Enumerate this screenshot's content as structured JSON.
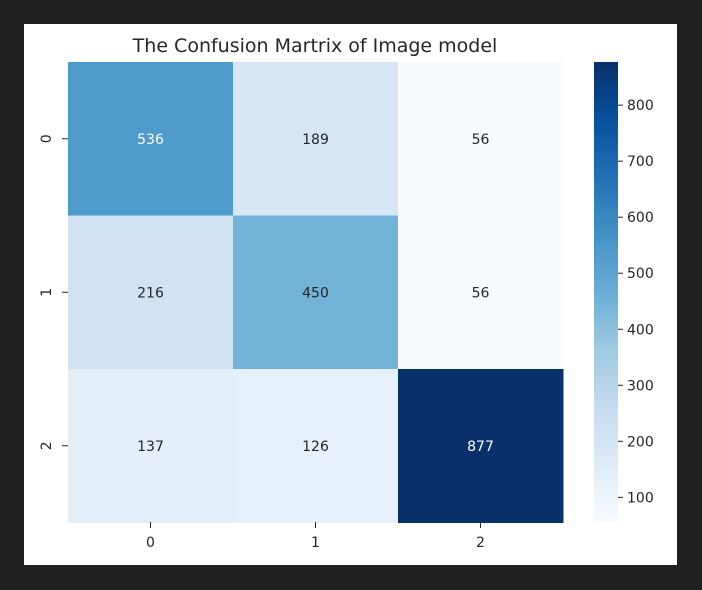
{
  "chart_data": {
    "type": "heatmap",
    "title": "The Confusion Martrix of Image model",
    "xlabel": "",
    "ylabel": "",
    "x_categories": [
      "0",
      "1",
      "2"
    ],
    "y_categories": [
      "0",
      "1",
      "2"
    ],
    "values": [
      [
        536,
        189,
        56
      ],
      [
        216,
        450,
        56
      ],
      [
        137,
        126,
        877
      ]
    ],
    "colormap": "Blues",
    "vmin": 56,
    "vmax": 877,
    "colorbar_ticks": [
      100,
      200,
      300,
      400,
      500,
      600,
      700,
      800
    ],
    "colorbar_tick_labels": [
      "100",
      "200",
      "300",
      "400",
      "500",
      "600",
      "700",
      "800"
    ],
    "colors": {
      "background": "#212121",
      "figure": "#ffffff",
      "text": "#262626",
      "annotation_light": "#ffffff",
      "annotation_dark": "#262626"
    }
  }
}
